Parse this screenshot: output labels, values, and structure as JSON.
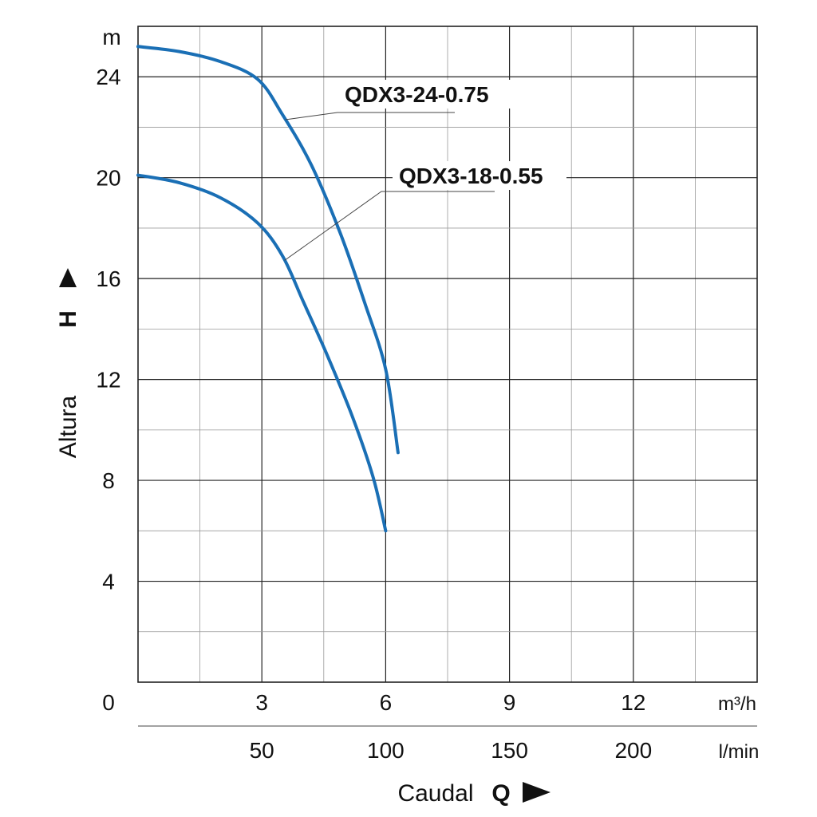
{
  "chart_data": {
    "type": "line",
    "title": "",
    "ylabel": "Altura",
    "ylabel_symbol": "H",
    "yunit": "m",
    "xlabel": "Caudal",
    "xlabel_symbol": "Q",
    "xunit_primary": "m³/h",
    "xunit_secondary": "l/min",
    "origin_label": "0",
    "xlim": [
      0,
      15
    ],
    "ylim": [
      0,
      26
    ],
    "grid": true,
    "x_ticks": [
      {
        "value": 3,
        "label": "3"
      },
      {
        "value": 6,
        "label": "6"
      },
      {
        "value": 9,
        "label": "9"
      },
      {
        "value": 12,
        "label": "12"
      }
    ],
    "x_secondary_ticks": [
      {
        "value": 3,
        "label": "50"
      },
      {
        "value": 6,
        "label": "100"
      },
      {
        "value": 9,
        "label": "150"
      },
      {
        "value": 12,
        "label": "200"
      }
    ],
    "y_ticks": [
      {
        "value": 4,
        "label": "4"
      },
      {
        "value": 8,
        "label": "8"
      },
      {
        "value": 12,
        "label": "12"
      },
      {
        "value": 16,
        "label": "16"
      },
      {
        "value": 20,
        "label": "20"
      },
      {
        "value": 24,
        "label": "24"
      }
    ],
    "series": [
      {
        "name": "QDX3-24-0.75",
        "color": "#1a6fb5",
        "x": [
          0,
          1.0,
          2.0,
          2.9,
          3.5,
          4.2,
          4.9,
          5.5,
          6.0,
          6.3
        ],
        "y": [
          25.2,
          25.0,
          24.6,
          23.9,
          22.5,
          20.5,
          17.8,
          15.0,
          12.4,
          9.1
        ]
      },
      {
        "name": "QDX3-18-0.55",
        "color": "#1a6fb5",
        "x": [
          0,
          1.0,
          2.0,
          2.9,
          3.5,
          4.0,
          4.6,
          5.2,
          5.7,
          6.0
        ],
        "y": [
          20.1,
          19.8,
          19.2,
          18.2,
          16.9,
          15.1,
          12.9,
          10.5,
          8.1,
          6.0
        ]
      }
    ]
  },
  "colors": {
    "curve": "#1a6fb5",
    "grid": "#222222",
    "text": "#111111"
  }
}
